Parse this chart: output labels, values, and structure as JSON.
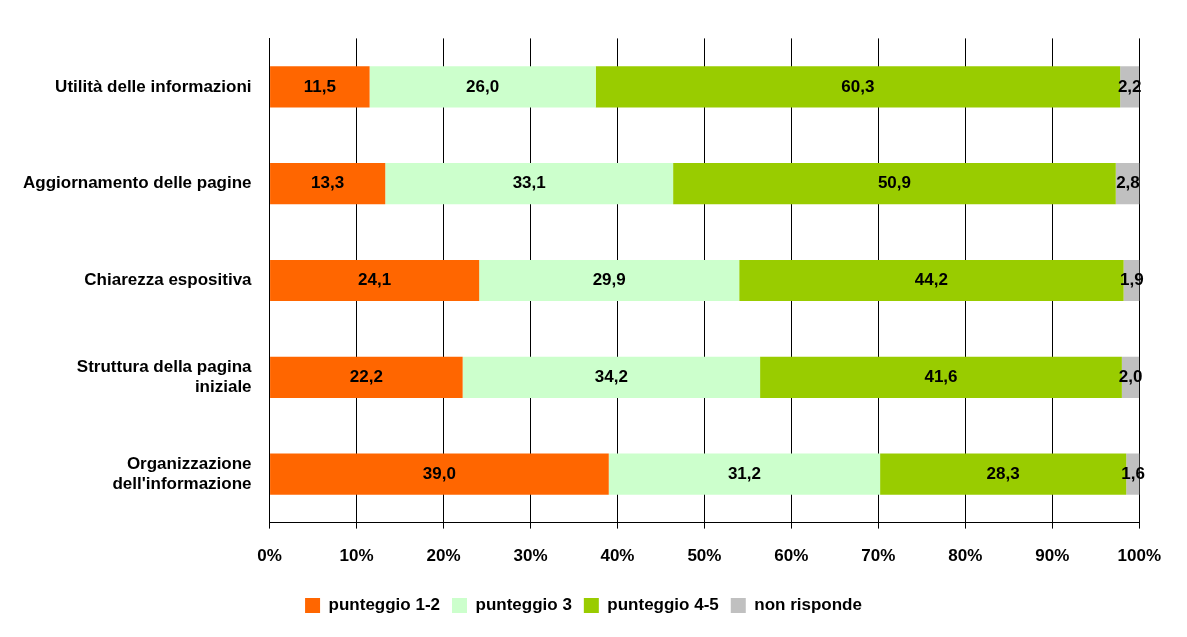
{
  "chart_data": {
    "type": "bar",
    "orientation": "horizontal",
    "stacked": true,
    "categories": [
      "Utilità delle informazioni",
      "Aggiornamento delle pagine",
      "Chiarezza espositiva",
      "Struttura della pagina iniziale",
      "Organizzazione dell'informazione"
    ],
    "series": [
      {
        "name": "punteggio 1-2",
        "color": "#ff6600",
        "values": [
          11.5,
          13.3,
          24.1,
          22.2,
          39.0
        ],
        "value_labels": [
          "11,5",
          "13,3",
          "24,1",
          "22,2",
          "39,0"
        ]
      },
      {
        "name": "punteggio 3",
        "color": "#ccffcc",
        "values": [
          26.0,
          33.1,
          29.9,
          34.2,
          31.2
        ],
        "value_labels": [
          "26,0",
          "33,1",
          "29,9",
          "34,2",
          "31,2"
        ]
      },
      {
        "name": "punteggio 4-5",
        "color": "#99cc00",
        "values": [
          60.3,
          50.9,
          44.2,
          41.6,
          28.3
        ],
        "value_labels": [
          "60,3",
          "50,9",
          "44,2",
          "41,6",
          "28,3"
        ]
      },
      {
        "name": "non risponde",
        "color": "#c0c0c0",
        "values": [
          2.2,
          2.8,
          1.9,
          2.0,
          1.6
        ],
        "value_labels": [
          "2,2",
          "2,8",
          "1,9",
          "2,0",
          "1,6"
        ]
      }
    ],
    "xlim": [
      0,
      100
    ],
    "xticks": [
      {
        "value": 0,
        "label": "0%"
      },
      {
        "value": 10,
        "label": "10%"
      },
      {
        "value": 20,
        "label": "20%"
      },
      {
        "value": 30,
        "label": "30%"
      },
      {
        "value": 40,
        "label": "40%"
      },
      {
        "value": 50,
        "label": "50%"
      },
      {
        "value": 60,
        "label": "60%"
      },
      {
        "value": 70,
        "label": "70%"
      },
      {
        "value": 80,
        "label": "80%"
      },
      {
        "value": 90,
        "label": "90%"
      },
      {
        "value": 100,
        "label": "100%"
      }
    ],
    "grid": "x",
    "legend": "bottom"
  }
}
